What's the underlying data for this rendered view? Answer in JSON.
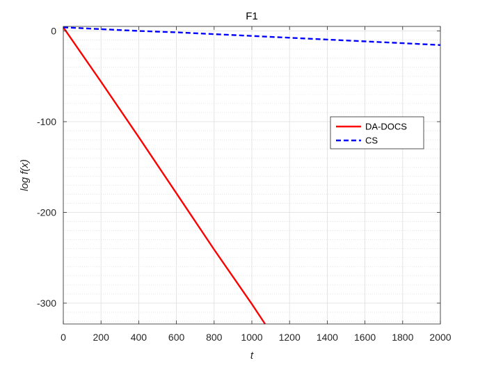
{
  "chart_data": {
    "type": "line",
    "title": "F1",
    "xlabel": "t",
    "ylabel": "log f(x)",
    "xlim": [
      0,
      2000
    ],
    "ylim": [
      -323,
      5
    ],
    "xticks": [
      0,
      200,
      400,
      600,
      800,
      1000,
      1200,
      1400,
      1600,
      1800,
      2000
    ],
    "yticks": [
      0,
      -100,
      -200,
      -300
    ],
    "grid": true,
    "minor_grid": true,
    "legend_position": "center-right",
    "series": [
      {
        "name": "DA-DOCS",
        "color": "#ff0000",
        "style": "solid",
        "x": [
          0,
          200,
          400,
          600,
          800,
          1000,
          1070
        ],
        "y": [
          4,
          -56,
          -117,
          -179,
          -241,
          -301,
          -323
        ]
      },
      {
        "name": "CS",
        "color": "#0000ff",
        "style": "dashed",
        "x": [
          0,
          200,
          400,
          600,
          800,
          1000,
          1200,
          1400,
          1600,
          1800,
          2000
        ],
        "y": [
          4,
          2,
          0,
          -1.5,
          -3.5,
          -5.5,
          -7.5,
          -9.5,
          -11.5,
          -13.5,
          -15.5
        ]
      }
    ]
  }
}
